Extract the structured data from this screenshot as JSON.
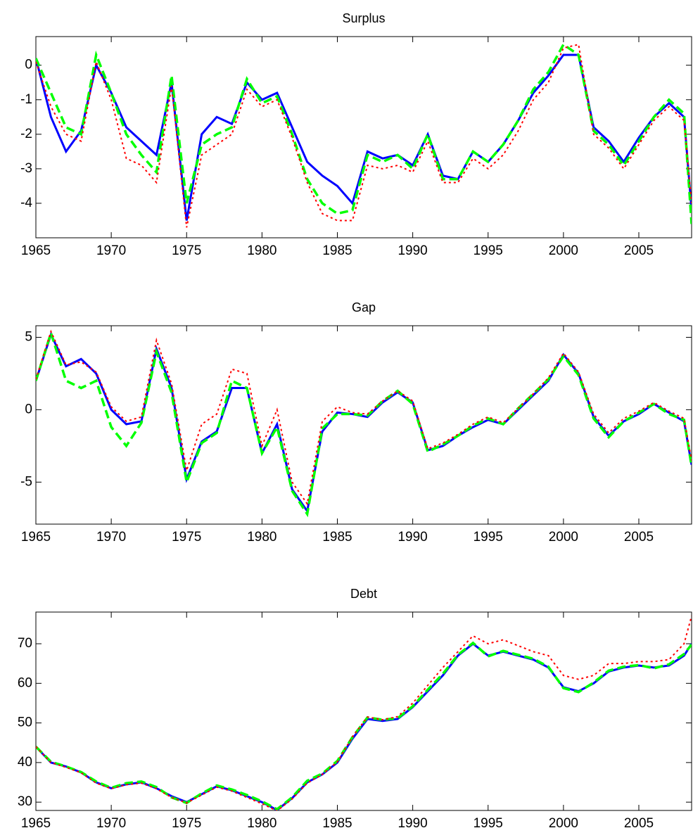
{
  "chart_data": [
    {
      "type": "line",
      "title": "Surplus",
      "x": [
        1965,
        1966,
        1967,
        1968,
        1969,
        1970,
        1971,
        1972,
        1973,
        1974,
        1975,
        1976,
        1977,
        1978,
        1979,
        1980,
        1981,
        1982,
        1983,
        1984,
        1985,
        1986,
        1987,
        1988,
        1989,
        1990,
        1991,
        1992,
        1993,
        1994,
        1995,
        1996,
        1997,
        1998,
        1999,
        2000,
        2001,
        2002,
        2003,
        2004,
        2005,
        2006,
        2007,
        2008,
        2008.5
      ],
      "series": [
        {
          "color": "#0000ff",
          "line_style": "solid",
          "values": [
            0.2,
            -1.5,
            -2.5,
            -1.9,
            0.0,
            -0.8,
            -1.8,
            -2.2,
            -2.6,
            -0.5,
            -4.5,
            -2.0,
            -1.5,
            -1.7,
            -0.5,
            -1.0,
            -0.8,
            -1.8,
            -2.8,
            -3.2,
            -3.5,
            -4.0,
            -2.5,
            -2.7,
            -2.6,
            -2.9,
            -2.0,
            -3.2,
            -3.3,
            -2.5,
            -2.8,
            -2.3,
            -1.6,
            -0.8,
            -0.3,
            0.3,
            0.3,
            -1.8,
            -2.2,
            -2.8,
            -2.1,
            -1.5,
            -1.1,
            -1.5,
            -4.2
          ]
        },
        {
          "color": "#00ff00",
          "line_style": "dashed",
          "values": [
            0.2,
            -0.8,
            -1.8,
            -2.0,
            0.3,
            -0.8,
            -2.0,
            -2.6,
            -3.1,
            -0.3,
            -4.0,
            -2.3,
            -2.0,
            -1.8,
            -0.4,
            -1.1,
            -0.9,
            -2.0,
            -3.3,
            -4.0,
            -4.3,
            -4.2,
            -2.6,
            -2.8,
            -2.6,
            -3.0,
            -2.0,
            -3.3,
            -3.3,
            -2.5,
            -2.8,
            -2.3,
            -1.6,
            -0.7,
            -0.2,
            0.6,
            0.3,
            -1.9,
            -2.3,
            -2.9,
            -2.2,
            -1.5,
            -1.0,
            -1.4,
            -4.6
          ]
        },
        {
          "color": "#ff0000",
          "line_style": "dotted",
          "values": [
            0.1,
            -1.2,
            -2.0,
            -2.2,
            0.1,
            -1.0,
            -2.7,
            -2.9,
            -3.4,
            -0.6,
            -4.7,
            -2.6,
            -2.3,
            -2.0,
            -0.7,
            -1.2,
            -1.0,
            -2.1,
            -3.4,
            -4.3,
            -4.5,
            -4.5,
            -2.9,
            -3.0,
            -2.9,
            -3.1,
            -2.2,
            -3.4,
            -3.4,
            -2.7,
            -3.0,
            -2.6,
            -1.9,
            -1.0,
            -0.5,
            0.5,
            0.6,
            -2.0,
            -2.4,
            -3.0,
            -2.3,
            -1.6,
            -1.2,
            -1.6,
            -4.0
          ]
        }
      ],
      "xlim": [
        1965,
        2008.5
      ],
      "ylim": [
        -5,
        0.83
      ],
      "xticks": [
        1965,
        1970,
        1975,
        1980,
        1985,
        1990,
        1995,
        2000,
        2005
      ],
      "yticks": [
        -4,
        -3,
        -2,
        -1,
        0
      ]
    },
    {
      "type": "line",
      "title": "Gap",
      "x": [
        1965,
        1966,
        1967,
        1968,
        1969,
        1970,
        1971,
        1972,
        1973,
        1974,
        1975,
        1976,
        1977,
        1978,
        1979,
        1980,
        1981,
        1982,
        1983,
        1984,
        1985,
        1986,
        1987,
        1988,
        1989,
        1990,
        1991,
        1992,
        1993,
        1994,
        1995,
        1996,
        1997,
        1998,
        1999,
        2000,
        2001,
        2002,
        2003,
        2004,
        2005,
        2006,
        2007,
        2008,
        2008.5
      ],
      "series": [
        {
          "color": "#0000ff",
          "line_style": "solid",
          "values": [
            2.0,
            5.2,
            3.0,
            3.5,
            2.5,
            0.0,
            -1.0,
            -0.8,
            4.2,
            1.5,
            -4.8,
            -2.2,
            -1.5,
            1.5,
            1.5,
            -3.0,
            -1.0,
            -5.5,
            -7.0,
            -1.5,
            -0.2,
            -0.3,
            -0.5,
            0.5,
            1.2,
            0.5,
            -2.8,
            -2.5,
            -1.8,
            -1.2,
            -0.7,
            -1.0,
            0.0,
            1.0,
            2.0,
            3.8,
            2.5,
            -0.5,
            -1.8,
            -0.8,
            -0.3,
            0.4,
            -0.2,
            -0.8,
            -3.8
          ]
        },
        {
          "color": "#00ff00",
          "line_style": "dashed",
          "values": [
            2.0,
            5.3,
            2.0,
            1.5,
            2.0,
            -1.2,
            -2.5,
            -0.9,
            4.0,
            1.2,
            -5.0,
            -2.3,
            -1.6,
            2.0,
            1.5,
            -3.0,
            -1.2,
            -5.6,
            -7.2,
            -1.3,
            -0.3,
            -0.3,
            -0.4,
            0.6,
            1.3,
            0.4,
            -2.9,
            -2.4,
            -1.8,
            -1.1,
            -0.6,
            -1.0,
            0.1,
            1.1,
            2.1,
            3.7,
            2.4,
            -0.6,
            -1.9,
            -0.8,
            -0.2,
            0.4,
            -0.3,
            -0.7,
            -3.9
          ]
        },
        {
          "color": "#ff0000",
          "line_style": "dotted",
          "values": [
            2.1,
            5.4,
            3.1,
            3.3,
            2.6,
            0.2,
            -0.8,
            -0.5,
            4.8,
            1.8,
            -4.2,
            -1.0,
            -0.3,
            2.8,
            2.5,
            -2.5,
            0.0,
            -5.0,
            -6.5,
            -0.8,
            0.2,
            -0.2,
            -0.3,
            0.6,
            1.3,
            0.6,
            -2.7,
            -2.3,
            -1.7,
            -1.0,
            -0.5,
            -0.9,
            0.1,
            1.1,
            2.2,
            3.9,
            2.6,
            -0.3,
            -1.6,
            -0.6,
            -0.1,
            0.5,
            -0.1,
            -0.6,
            -3.5
          ]
        }
      ],
      "xlim": [
        1965,
        2008.5
      ],
      "ylim": [
        -7.9,
        5.8
      ],
      "xticks": [
        1965,
        1970,
        1975,
        1980,
        1985,
        1990,
        1995,
        2000,
        2005
      ],
      "yticks": [
        -5,
        0,
        5
      ]
    },
    {
      "type": "line",
      "title": "Debt",
      "x": [
        1965,
        1966,
        1967,
        1968,
        1969,
        1970,
        1971,
        1972,
        1973,
        1974,
        1975,
        1976,
        1977,
        1978,
        1979,
        1980,
        1981,
        1982,
        1983,
        1984,
        1985,
        1986,
        1987,
        1988,
        1989,
        1990,
        1991,
        1992,
        1993,
        1994,
        1995,
        1996,
        1997,
        1998,
        1999,
        2000,
        2001,
        2002,
        2003,
        2004,
        2005,
        2006,
        2007,
        2008,
        2008.5
      ],
      "series": [
        {
          "color": "#0000ff",
          "line_style": "solid",
          "values": [
            44,
            40,
            39,
            37.5,
            35,
            33.5,
            34.5,
            35,
            33.5,
            31.5,
            30,
            32,
            34,
            33,
            31.5,
            30,
            28,
            31,
            35,
            37,
            40,
            46,
            51,
            50.5,
            51,
            54,
            58,
            62,
            67,
            70,
            67,
            68,
            67,
            66,
            64,
            59,
            58,
            60,
            63,
            64,
            64.5,
            64,
            64.5,
            67,
            70
          ]
        },
        {
          "color": "#00ff00",
          "line_style": "dashed",
          "values": [
            44,
            40.2,
            39,
            37.6,
            35.2,
            33.6,
            34.8,
            35.2,
            33.8,
            31.2,
            29.8,
            32.2,
            34.2,
            33.2,
            31.8,
            30.2,
            28.2,
            31.2,
            35.4,
            37.2,
            40.4,
            46.4,
            51.4,
            50.8,
            51.2,
            54.2,
            58.4,
            62.4,
            67.2,
            70.2,
            66.8,
            68.2,
            67.2,
            66.2,
            64.2,
            58.8,
            57.8,
            60.2,
            63.2,
            64.2,
            64.6,
            63.8,
            64.8,
            67.4,
            69.8
          ]
        },
        {
          "color": "#ff0000",
          "line_style": "dotted",
          "values": [
            44,
            40,
            38.8,
            37.4,
            34.8,
            33.4,
            34.4,
            34.8,
            33.4,
            31.2,
            29.8,
            31.8,
            33.8,
            32.8,
            31.2,
            29.6,
            27.8,
            30.8,
            34.8,
            37,
            40.2,
            46.5,
            51.5,
            50.8,
            51.6,
            55,
            59.5,
            64,
            68,
            72,
            70,
            71,
            69.5,
            68,
            67,
            62,
            61,
            62,
            65,
            65,
            65.5,
            65.5,
            66,
            70,
            77
          ]
        }
      ],
      "xlim": [
        1965,
        2008.5
      ],
      "ylim": [
        27.9,
        78
      ],
      "xticks": [
        1965,
        1970,
        1975,
        1980,
        1985,
        1990,
        1995,
        2000,
        2005
      ],
      "yticks": [
        30,
        40,
        50,
        60,
        70
      ]
    }
  ]
}
